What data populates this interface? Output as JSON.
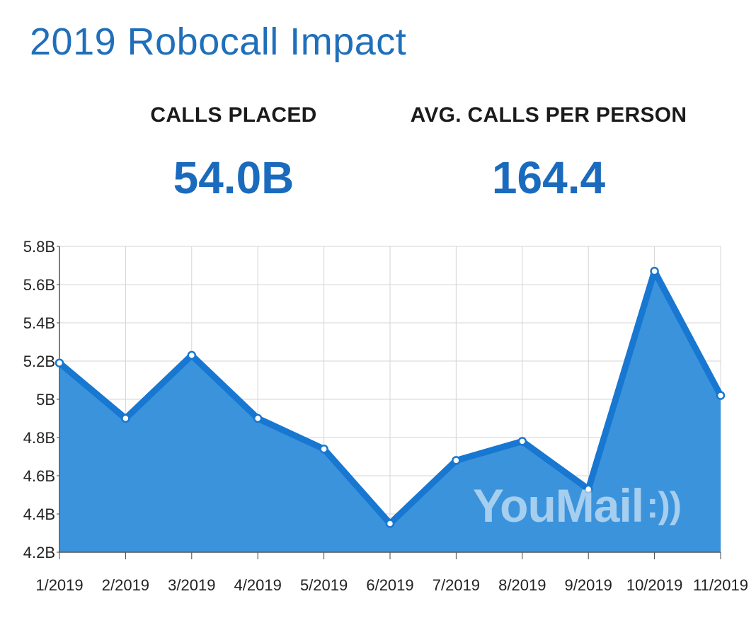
{
  "header": {
    "title": "2019 Robocall Impact"
  },
  "stats": [
    {
      "label": "CALLS PLACED",
      "value": "54.0B"
    },
    {
      "label": "AVG. CALLS PER PERSON",
      "value": "164.4"
    }
  ],
  "watermark": {
    "text": "YouMail",
    "waves": ":))"
  },
  "colors": {
    "line": "#1777d1",
    "fill": "#3b93dc",
    "title": "#1f6fba",
    "value": "#1a6bbd"
  },
  "chart_data": {
    "type": "area",
    "categories": [
      "1/2019",
      "2/2019",
      "3/2019",
      "4/2019",
      "5/2019",
      "6/2019",
      "7/2019",
      "8/2019",
      "9/2019",
      "10/2019",
      "11/2019"
    ],
    "values": [
      5.19,
      4.9,
      5.23,
      4.9,
      4.74,
      4.35,
      4.68,
      4.78,
      4.53,
      5.67,
      5.02
    ],
    "yticks": [
      4.2,
      4.4,
      4.6,
      4.8,
      5.0,
      5.2,
      5.4,
      5.6,
      5.8
    ],
    "ytick_labels": [
      "4.2B",
      "4.4B",
      "4.6B",
      "4.8B",
      "5B",
      "5.2B",
      "5.4B",
      "5.6B",
      "5.8B"
    ],
    "ylim": [
      4.2,
      5.8
    ],
    "grid": true
  }
}
